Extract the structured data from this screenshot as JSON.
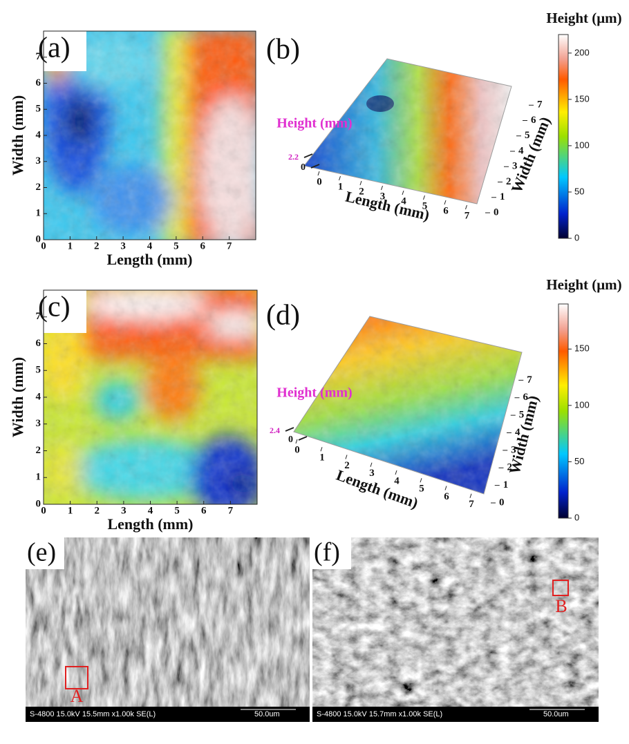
{
  "panels": [
    {
      "label": "(a)",
      "x_label": "Length (mm)",
      "y_label": "Width (mm)",
      "xlim": [
        0,
        8
      ],
      "ylim": [
        0,
        8
      ],
      "xticks": [
        0,
        1,
        2,
        3,
        4,
        5,
        6,
        7
      ],
      "yticks": [
        0,
        1,
        2,
        3,
        4,
        5,
        6,
        7
      ]
    },
    {
      "label": "(b)",
      "z_label": "Height (mm)",
      "z_ticks": [
        0,
        2.2
      ],
      "x_label": "Length (mm)",
      "y_label": "Width (mm)",
      "xlim": [
        0,
        8
      ],
      "ylim": [
        0,
        8
      ],
      "xticks": [
        0,
        1,
        2,
        3,
        4,
        5,
        6,
        7
      ],
      "yticks": [
        0,
        1,
        2,
        3,
        4,
        5,
        6,
        7
      ]
    },
    {
      "label": "(c)",
      "x_label": "Length (mm)",
      "y_label": "Width (mm)",
      "xlim": [
        0,
        8
      ],
      "ylim": [
        0,
        8
      ],
      "xticks": [
        0,
        1,
        2,
        3,
        4,
        5,
        6,
        7
      ],
      "yticks": [
        0,
        1,
        2,
        3,
        4,
        5,
        6,
        7
      ]
    },
    {
      "label": "(d)",
      "z_label": "Height (mm)",
      "z_ticks": [
        0,
        2.4
      ],
      "x_label": "Length (mm)",
      "y_label": "Width (mm)",
      "xlim": [
        0,
        8
      ],
      "ylim": [
        0,
        8
      ],
      "xticks": [
        0,
        1,
        2,
        3,
        4,
        5,
        6,
        7
      ],
      "yticks": [
        0,
        1,
        2,
        3,
        4,
        5,
        6,
        7
      ]
    }
  ],
  "colorbars": [
    {
      "title": "Height (μm)",
      "lim": [
        0,
        220
      ],
      "ticks": [
        0,
        50,
        100,
        150,
        200
      ]
    },
    {
      "title": "Height (μm)",
      "lim": [
        0,
        190
      ],
      "ticks": [
        0,
        50,
        100,
        150
      ]
    }
  ],
  "sem": [
    {
      "label": "(e)",
      "marker": "A",
      "info": "S-4800 15.0kV 15.5mm x1.00k SE(L)",
      "scale": "50.0um"
    },
    {
      "label": "(f)",
      "marker": "B",
      "info": "S-4800 15.0kV 15.7mm x1.00k SE(L)",
      "scale": "50.0um"
    }
  ]
}
